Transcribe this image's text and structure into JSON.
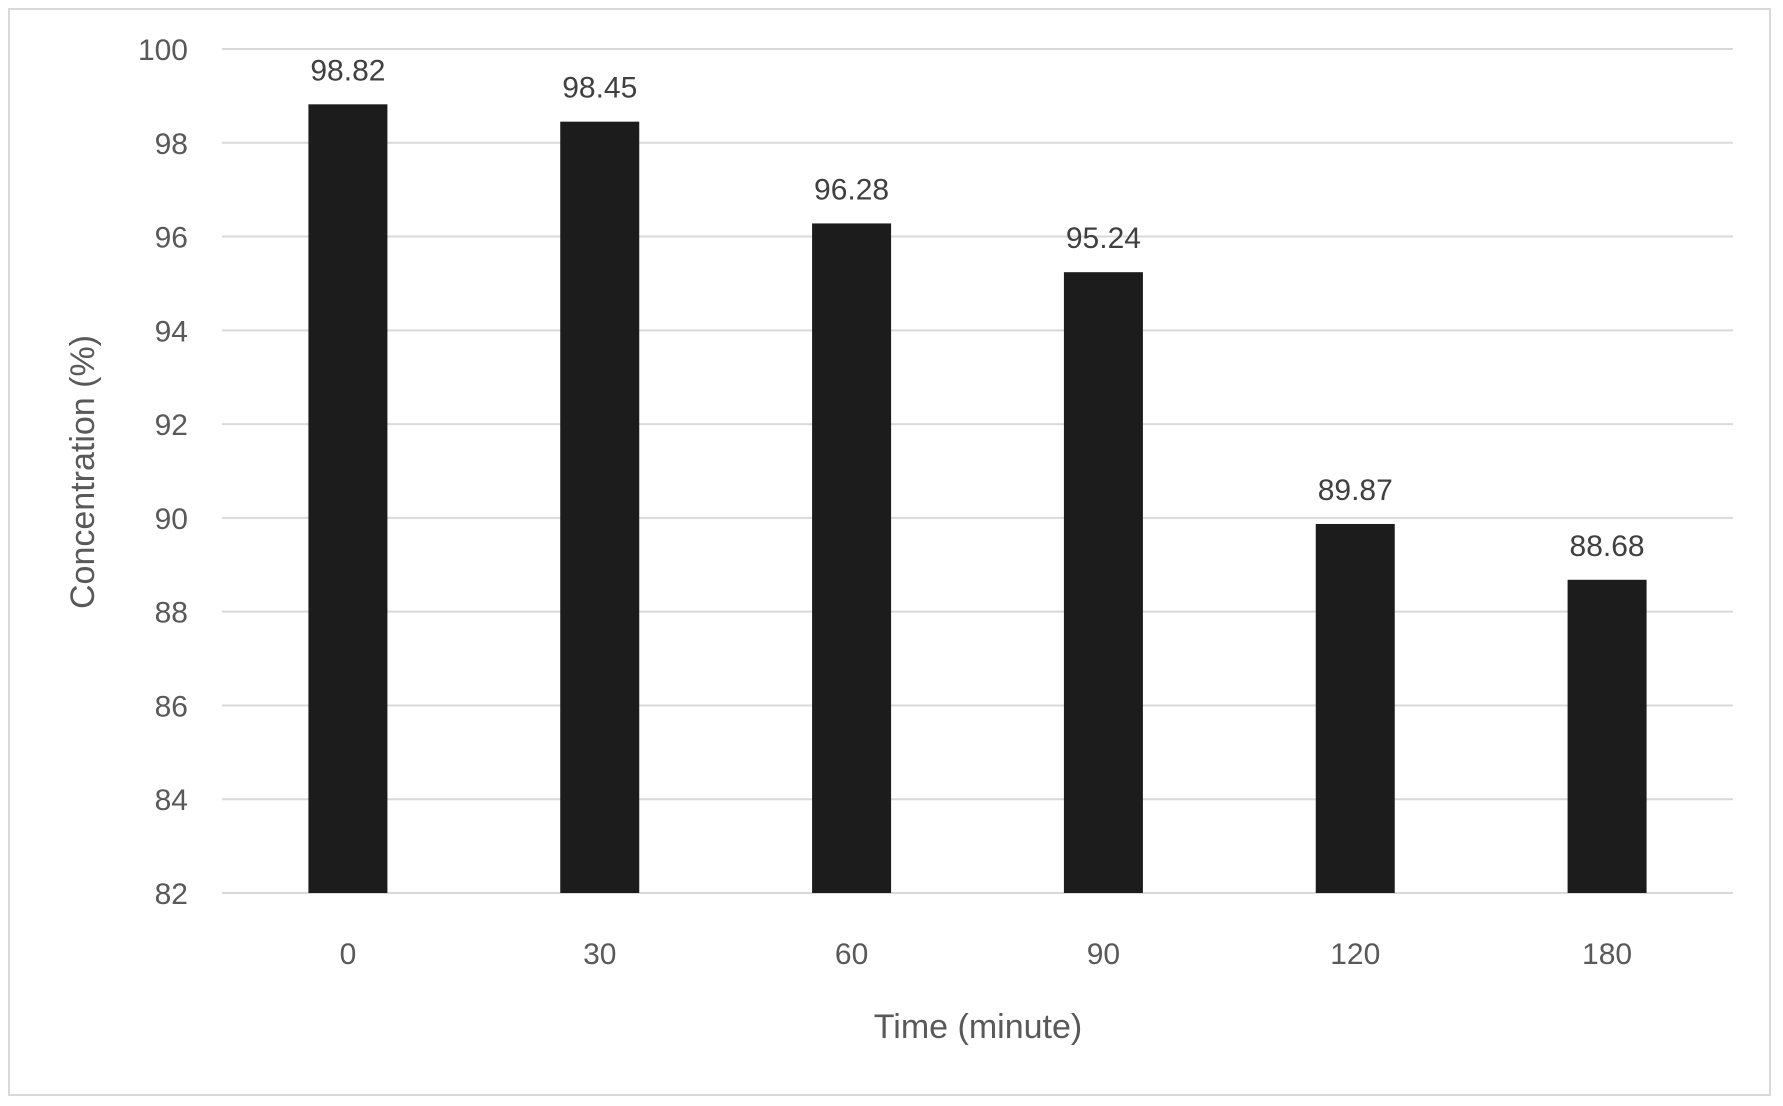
{
  "chart_data": {
    "type": "bar",
    "categories": [
      "0",
      "30",
      "60",
      "90",
      "120",
      "180"
    ],
    "values": [
      98.82,
      98.45,
      96.28,
      95.24,
      89.87,
      88.68
    ],
    "data_labels": [
      "98.82",
      "98.45",
      "96.28",
      "95.24",
      "89.87",
      "88.68"
    ],
    "title": "",
    "xlabel": "Time (minute)",
    "ylabel": "Concentration (%)",
    "ylim": [
      82,
      100
    ],
    "yticks": [
      82,
      84,
      86,
      88,
      90,
      92,
      94,
      96,
      98,
      100
    ],
    "ytick_labels": [
      "82",
      "84",
      "86",
      "88",
      "90",
      "92",
      "94",
      "96",
      "98",
      "100"
    ],
    "grid": true,
    "legend": "none",
    "colors": {
      "bar": "#1c1c1c",
      "grid": "#d9d9d9",
      "tick_text": "#595959",
      "label_text": "#404040",
      "frame": "#d9d9d9"
    }
  }
}
